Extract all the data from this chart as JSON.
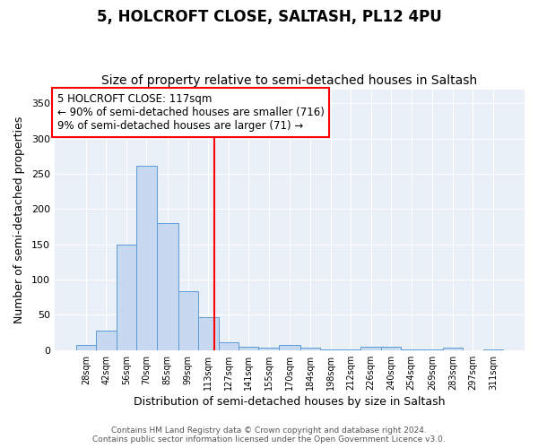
{
  "title1": "5, HOLCROFT CLOSE, SALTASH, PL12 4PU",
  "title2": "Size of property relative to semi-detached houses in Saltash",
  "xlabel": "Distribution of semi-detached houses by size in Saltash",
  "ylabel": "Number of semi-detached properties",
  "bin_edges": [
    21,
    35,
    49,
    63,
    77,
    92,
    106,
    120,
    134,
    148,
    162,
    177,
    191,
    205,
    219,
    233,
    247,
    261,
    276,
    290,
    304,
    318
  ],
  "bin_labels": [
    "28sqm",
    "42sqm",
    "56sqm",
    "70sqm",
    "85sqm",
    "99sqm",
    "113sqm",
    "127sqm",
    "141sqm",
    "155sqm",
    "170sqm",
    "184sqm",
    "198sqm",
    "212sqm",
    "226sqm",
    "240sqm",
    "254sqm",
    "269sqm",
    "283sqm",
    "297sqm",
    "311sqm"
  ],
  "heights": [
    7,
    28,
    150,
    262,
    180,
    84,
    47,
    11,
    5,
    4,
    8,
    4,
    1,
    1,
    5,
    5,
    1,
    1,
    3,
    0,
    1
  ],
  "bar_color": "#c6d9f0",
  "bar_edge_color": "#5b9bd5",
  "red_line_x": 117,
  "annotation_title": "5 HOLCROFT CLOSE: 117sqm",
  "annotation_line1": "← 90% of semi-detached houses are smaller (716)",
  "annotation_line2": "9% of semi-detached houses are larger (71) →",
  "ylim": [
    0,
    370
  ],
  "yticks": [
    0,
    50,
    100,
    150,
    200,
    250,
    300,
    350
  ],
  "background_color": "#eaf0f8",
  "footer": "Contains HM Land Registry data © Crown copyright and database right 2024.\nContains public sector information licensed under the Open Government Licence v3.0.",
  "title_fontsize": 12,
  "subtitle_fontsize": 10,
  "annotation_fontsize": 8.5,
  "footer_fontsize": 6.5
}
